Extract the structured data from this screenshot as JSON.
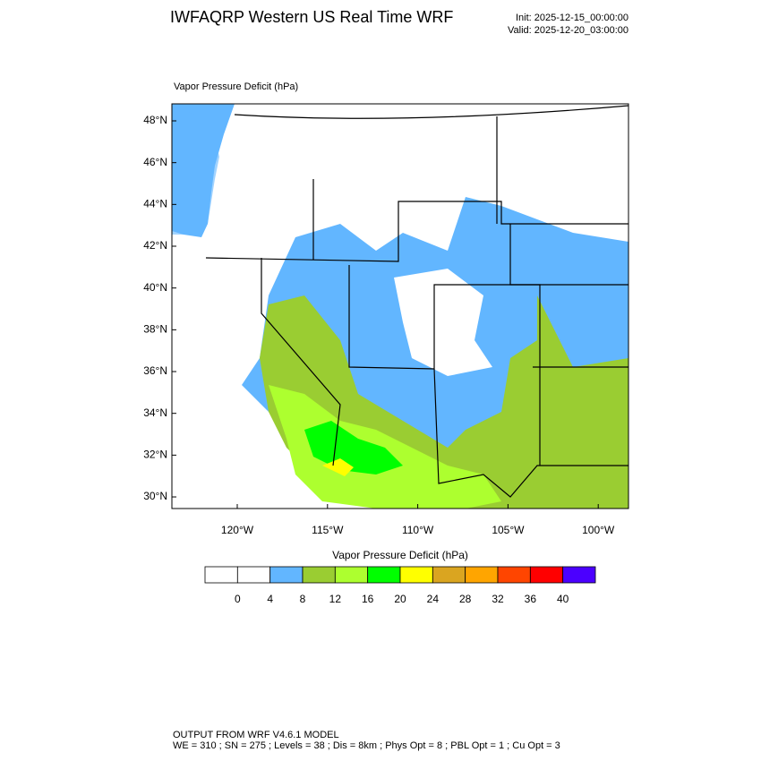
{
  "header": {
    "title": "IWFAQRP Western US Real Time WRF",
    "init": "Init: 2025-12-15_00:00:00",
    "valid": "Valid: 2025-12-20_03:00:00"
  },
  "map": {
    "title": "Vapor Pressure Deficit   (hPa)",
    "lat_labels": [
      "48°N",
      "46°N",
      "44°N",
      "42°N",
      "40°N",
      "38°N",
      "36°N",
      "34°N",
      "32°N",
      "30°N"
    ],
    "lon_labels": [
      "120°W",
      "115°W",
      "110°W",
      "105°W",
      "100°W"
    ]
  },
  "colorbar": {
    "title": "Vapor Pressure Deficit  (hPa)",
    "colors": [
      "#ffffff",
      "#ffffff",
      "#62b6ff",
      "#9acd32",
      "#adff2f",
      "#00ff00",
      "#ffff00",
      "#daa520",
      "#ffa500",
      "#ff4500",
      "#ff0000",
      "#4b00ff"
    ],
    "levels": [
      0,
      4,
      8,
      12,
      16,
      20,
      24,
      28,
      32,
      36,
      40
    ]
  },
  "footer": {
    "line1": "OUTPUT FROM WRF V4.6.1 MODEL",
    "line2": "WE = 310 ; SN = 275 ; Levels = 38 ; Dis = 8km ; Phys Opt = 8 ; PBL Opt = 1 ; Cu Opt = 3"
  }
}
